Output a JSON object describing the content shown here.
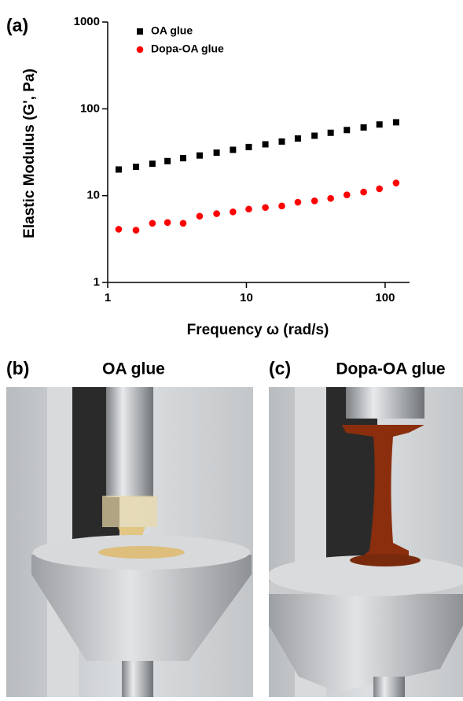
{
  "chart_data": {
    "type": "scatter",
    "panel_label": "(a)",
    "x_label": "Frequency ω (rad/s)",
    "y_label": "Elastic Modulus (G', Pa)",
    "log_x": true,
    "log_y": true,
    "legend": "upper left",
    "x": [
      1.2,
      1.6,
      2.1,
      2.7,
      3.5,
      4.6,
      6.1,
      8,
      10.4,
      13.7,
      18,
      23.5,
      31,
      40.5,
      53,
      70,
      91,
      120
    ],
    "series": [
      {
        "name": "OA glue",
        "color": "#000000",
        "marker": "square",
        "values": [
          20,
          21.5,
          23.3,
          25,
          27,
          29,
          31.3,
          33.7,
          36.3,
          39,
          42,
          45.5,
          49,
          53,
          57,
          61,
          66,
          70
        ]
      },
      {
        "name": "Dopa-OA glue",
        "color": "#ff0000",
        "marker": "circle",
        "values": [
          4.1,
          4.0,
          4.8,
          4.9,
          4.8,
          5.8,
          6.2,
          6.5,
          7.0,
          7.3,
          7.6,
          8.4,
          8.7,
          9.3,
          10.2,
          11,
          12,
          14
        ]
      }
    ],
    "xlim": [
      1,
      150
    ],
    "ylim": [
      1,
      1000
    ],
    "xticks": [
      1,
      10,
      100
    ],
    "yticks": [
      1,
      10,
      100,
      1000
    ]
  },
  "photos": [
    {
      "label": "(b)",
      "title": "OA glue"
    },
    {
      "label": "(c)",
      "title": "Dopa-OA glue"
    }
  ]
}
